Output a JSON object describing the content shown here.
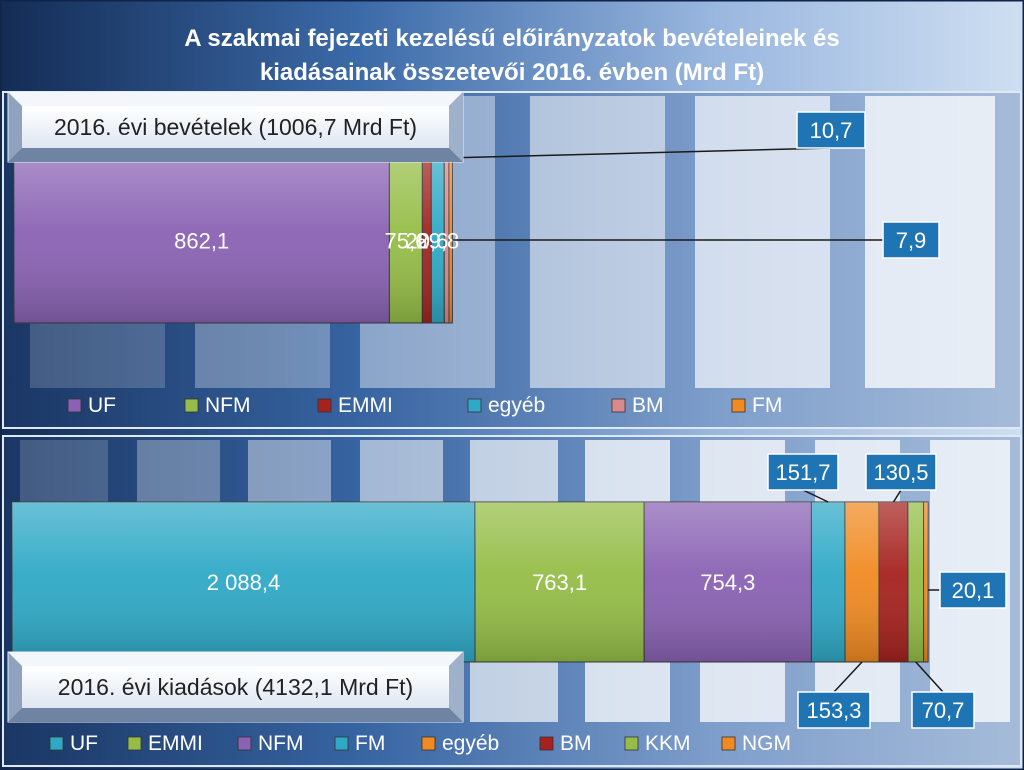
{
  "title_line1": "A szakmai fejezeti  kezelésű előirányzatok bevételeinek és",
  "title_line2": "kiadásainak összetevői 2016. évben (Mrd Ft)",
  "colors": {
    "UF": "#8a62b3",
    "NFM": "#95bd47",
    "EMMI": "#a5221f",
    "egyeb": "#2fa9c6",
    "BM": "#d98a8c",
    "FM": "#f08a22",
    "KKM": "#95bd47",
    "NGM": "#f08a22",
    "label_box": "#1f74b3"
  },
  "chart_data": [
    {
      "type": "bar",
      "orientation": "horizontal-stacked",
      "panel_title": "2016. évi bevételek (1006,7 Mrd Ft)",
      "total": 1006.7,
      "series": [
        {
          "name": "UF",
          "value": 862.1,
          "label": "862,1",
          "color_key": "UF"
        },
        {
          "name": "NFM",
          "value": 75.6,
          "label": "75,6",
          "color_key": "NFM"
        },
        {
          "name": "EMMI",
          "value": 20.6,
          "label": "20,6",
          "color_key": "EMMI"
        },
        {
          "name": "egyéb",
          "value": 29.8,
          "label": "29,8",
          "color_key": "egyeb"
        },
        {
          "name": "BM",
          "value": 10.7,
          "label": "10,7",
          "color_key": "BM"
        },
        {
          "name": "FM",
          "value": 7.9,
          "label": "7,9",
          "color_key": "FM"
        }
      ],
      "legend_position": "bottom"
    },
    {
      "type": "bar",
      "orientation": "horizontal-stacked",
      "panel_title": "2016. évi kiadások (4132,1 Mrd Ft)",
      "total": 4132.1,
      "series": [
        {
          "name": "UF",
          "value": 2088.4,
          "label": "2 088,4",
          "color_key": "egyeb"
        },
        {
          "name": "EMMI",
          "value": 763.1,
          "label": "763,1",
          "color_key": "NFM"
        },
        {
          "name": "NFM",
          "value": 754.3,
          "label": "754,3",
          "color_key": "UF"
        },
        {
          "name": "FM",
          "value": 151.7,
          "label": "151,7",
          "color_key": "egyeb"
        },
        {
          "name": "egyéb",
          "value": 153.3,
          "label": "153,3",
          "color_key": "FM"
        },
        {
          "name": "BM",
          "value": 130.5,
          "label": "130,5",
          "color_key": "EMMI"
        },
        {
          "name": "KKM",
          "value": 70.7,
          "label": "70,7",
          "color_key": "KKM"
        },
        {
          "name": "NGM",
          "value": 20.1,
          "label": "20,1",
          "color_key": "NGM"
        }
      ],
      "legend_position": "bottom"
    }
  ]
}
